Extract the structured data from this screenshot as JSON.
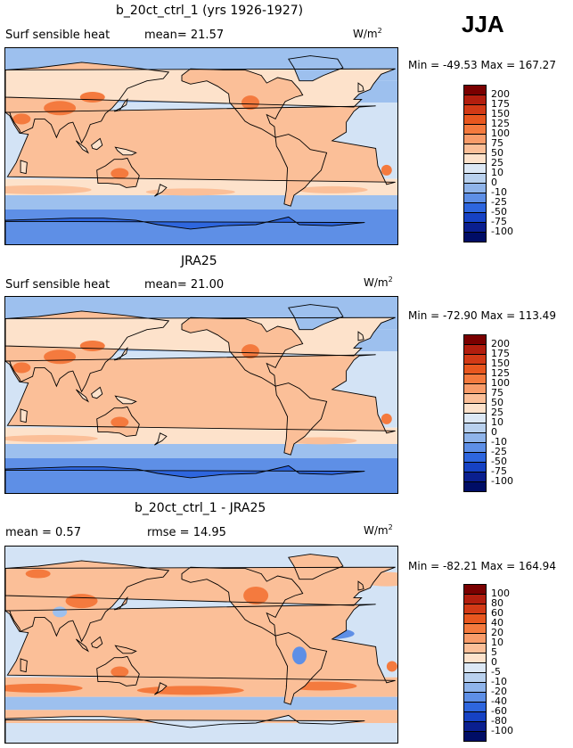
{
  "season": "JJA",
  "panels": [
    {
      "title": "b_20ct_ctrl_1 (yrs 1926-1927)",
      "left_text": "Surf sensible heat",
      "stat_text": "mean=  21.57",
      "units": "W/m",
      "units_sup": "2",
      "minmax": "Min = -49.53  Max = 167.27",
      "colorbar": {
        "labels": [
          "200",
          "175",
          "150",
          "125",
          "100",
          "75",
          "50",
          "25",
          "10",
          "0",
          "-10",
          "-25",
          "-50",
          "-75",
          "-100"
        ],
        "colors": [
          "#7a0000",
          "#b21e0e",
          "#d23a16",
          "#e8571f",
          "#f47a3e",
          "#f89c6a",
          "#fbbf98",
          "#fde2cb",
          "#dce8f5",
          "#b9d1ee",
          "#8fb4ea",
          "#5e8fe6",
          "#2e66de",
          "#1642c4",
          "#0a1f8f",
          "#000d66"
        ]
      }
    },
    {
      "title": "JRA25",
      "left_text": "Surf sensible heat",
      "stat_text": "mean=  21.00",
      "units": "W/m",
      "units_sup": "2",
      "minmax": "Min = -72.90  Max = 113.49",
      "colorbar": {
        "labels": [
          "200",
          "175",
          "150",
          "125",
          "100",
          "75",
          "50",
          "25",
          "10",
          "0",
          "-10",
          "-25",
          "-50",
          "-75",
          "-100"
        ],
        "colors": [
          "#7a0000",
          "#b21e0e",
          "#d23a16",
          "#e8571f",
          "#f47a3e",
          "#f89c6a",
          "#fbbf98",
          "#fde2cb",
          "#dce8f5",
          "#b9d1ee",
          "#8fb4ea",
          "#5e8fe6",
          "#2e66de",
          "#1642c4",
          "#0a1f8f",
          "#000d66"
        ]
      }
    },
    {
      "title": "b_20ct_ctrl_1 - JRA25",
      "left_text": "mean =   0.57",
      "stat_text": "rmse =  14.95",
      "units": "W/m",
      "units_sup": "2",
      "minmax": "Min = -82.21  Max = 164.94",
      "colorbar": {
        "labels": [
          "100",
          "80",
          "60",
          "40",
          "20",
          "10",
          "5",
          "0",
          "-5",
          "-10",
          "-20",
          "-40",
          "-60",
          "-80",
          "-100"
        ],
        "colors": [
          "#7a0000",
          "#b21e0e",
          "#d23a16",
          "#e8571f",
          "#f47a3e",
          "#f89c6a",
          "#fbbf98",
          "#fde2cb",
          "#dce8f5",
          "#b9d1ee",
          "#8fb4ea",
          "#5e8fe6",
          "#2e66de",
          "#1642c4",
          "#0a1f8f",
          "#000d66"
        ]
      }
    }
  ],
  "map_colors": {
    "ocean_warm": "#d3e3f5",
    "ocean_cool": "#9dc0ee",
    "ocean_cold": "#5e8fe6",
    "polar": "#2e66de",
    "land_warm": "#fbbf98",
    "land_hot": "#f47a3e",
    "land_mild": "#fde2cb",
    "coast": "#000000"
  }
}
